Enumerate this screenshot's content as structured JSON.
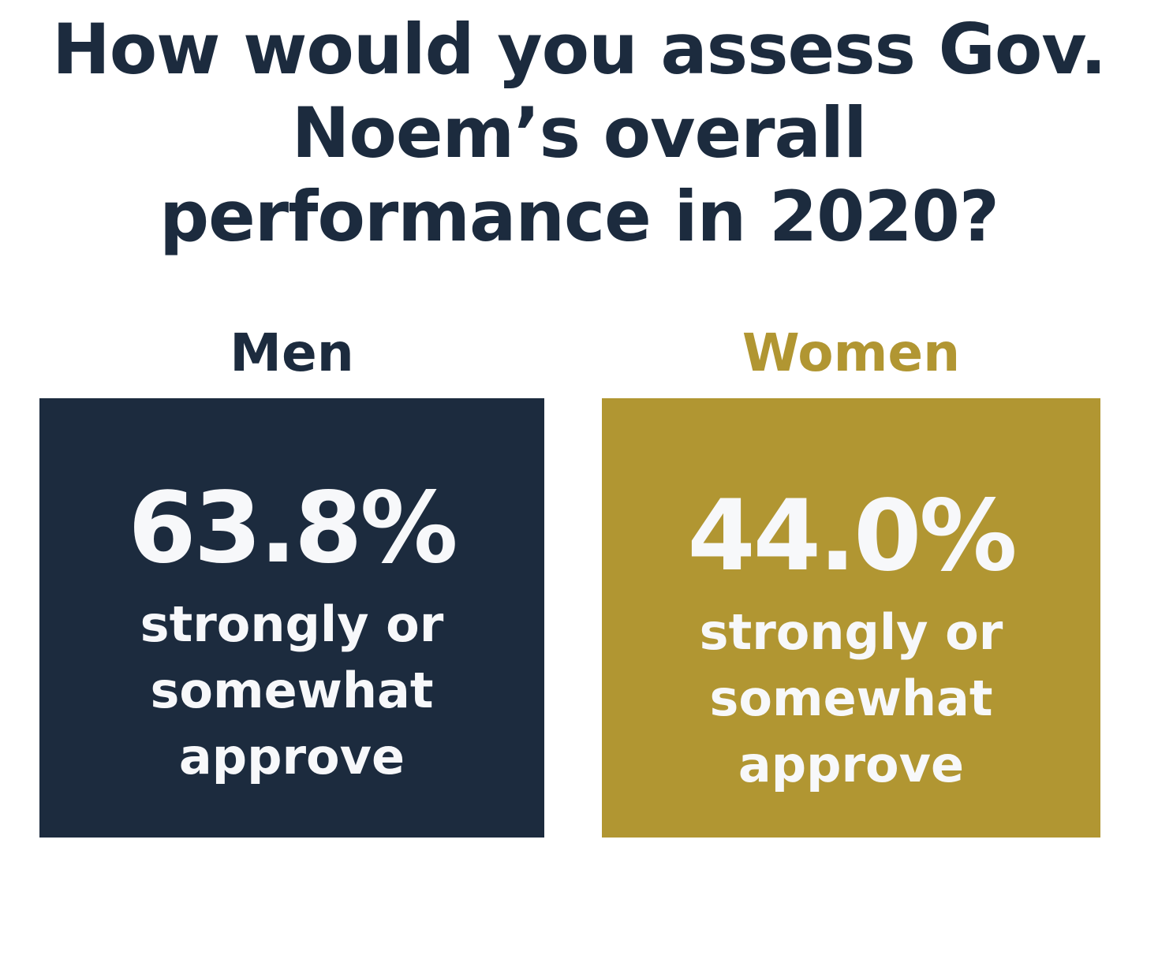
{
  "title": {
    "line1": "How would you assess Gov.",
    "line2": "Noem’s overall",
    "line3": "performance in 2020?"
  },
  "colors": {
    "navy": "#1c2b3e",
    "gold": "#b19632",
    "text_light": "#f7f8fa",
    "background": "#ffffff"
  },
  "groups": [
    {
      "label": "Men",
      "value": "63.8%",
      "desc1": "strongly or",
      "desc2": "somewhat",
      "desc3": "approve"
    },
    {
      "label": "Women",
      "value": "44.0%",
      "desc1": "strongly or",
      "desc2": "somewhat",
      "desc3": "approve"
    }
  ]
}
